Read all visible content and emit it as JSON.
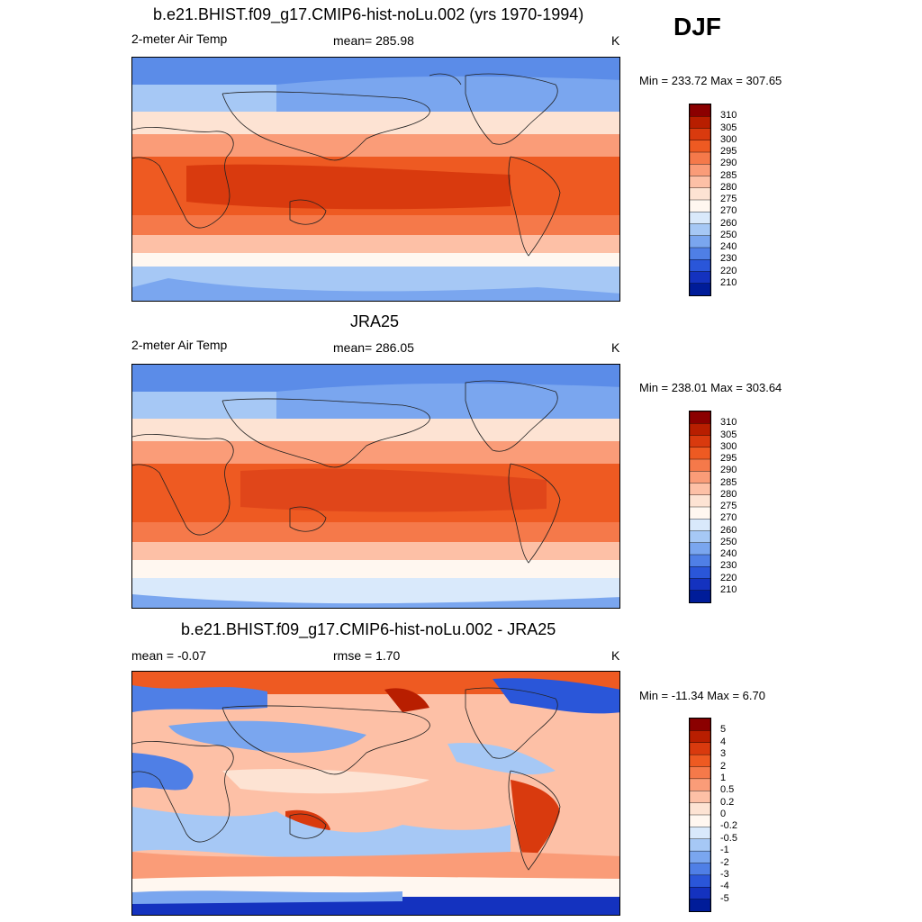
{
  "season": "DJF",
  "panels": [
    {
      "id": "model",
      "title": "b.e21.BHIST.f09_g17.CMIP6-hist-noLu.002 (yrs 1970-1994)",
      "left_label": "2-meter Air Temp",
      "center_label": "mean= 285.98",
      "right_label": "K",
      "minmax": "Min = 233.72 Max = 307.65",
      "field": "absolute"
    },
    {
      "id": "obs",
      "title": "JRA25",
      "left_label": "2-meter Air Temp",
      "center_label": "mean= 286.05",
      "right_label": "K",
      "minmax": "Min = 238.01 Max = 303.64",
      "field": "absolute"
    },
    {
      "id": "diff",
      "title": "b.e21.BHIST.f09_g17.CMIP6-hist-noLu.002 - JRA25",
      "left_label": "mean =  -0.07",
      "center_label": "rmse =   1.70",
      "right_label": "K",
      "minmax": "Min = -11.34 Max =   6.70",
      "field": "difference"
    }
  ],
  "colorbars": {
    "absolute": {
      "labels": [
        "310",
        "305",
        "300",
        "295",
        "290",
        "285",
        "280",
        "275",
        "270",
        "260",
        "250",
        "240",
        "230",
        "220",
        "210"
      ],
      "colors": [
        "#8b0000",
        "#b81e00",
        "#d93a0e",
        "#ee5a22",
        "#f5794a",
        "#fa9c78",
        "#fdc0a6",
        "#fde3d3",
        "#fff7f0",
        "#d9e9fb",
        "#a6c8f5",
        "#7aa6ef",
        "#4f7fe6",
        "#2a56d9",
        "#1432bf",
        "#001c99"
      ]
    },
    "difference": {
      "labels": [
        "5",
        "4",
        "3",
        "2",
        "1",
        "0.5",
        "0.2",
        "0",
        "-0.2",
        "-0.5",
        "-1",
        "-2",
        "-3",
        "-4",
        "-5"
      ],
      "colors": [
        "#8b0000",
        "#b81e00",
        "#d93a0e",
        "#ee5a22",
        "#f5794a",
        "#fa9c78",
        "#fdc0a6",
        "#fde3d3",
        "#fff7f0",
        "#d9e9fb",
        "#a6c8f5",
        "#7aa6ef",
        "#4f7fe6",
        "#2a56d9",
        "#1432bf",
        "#001c99"
      ]
    }
  }
}
